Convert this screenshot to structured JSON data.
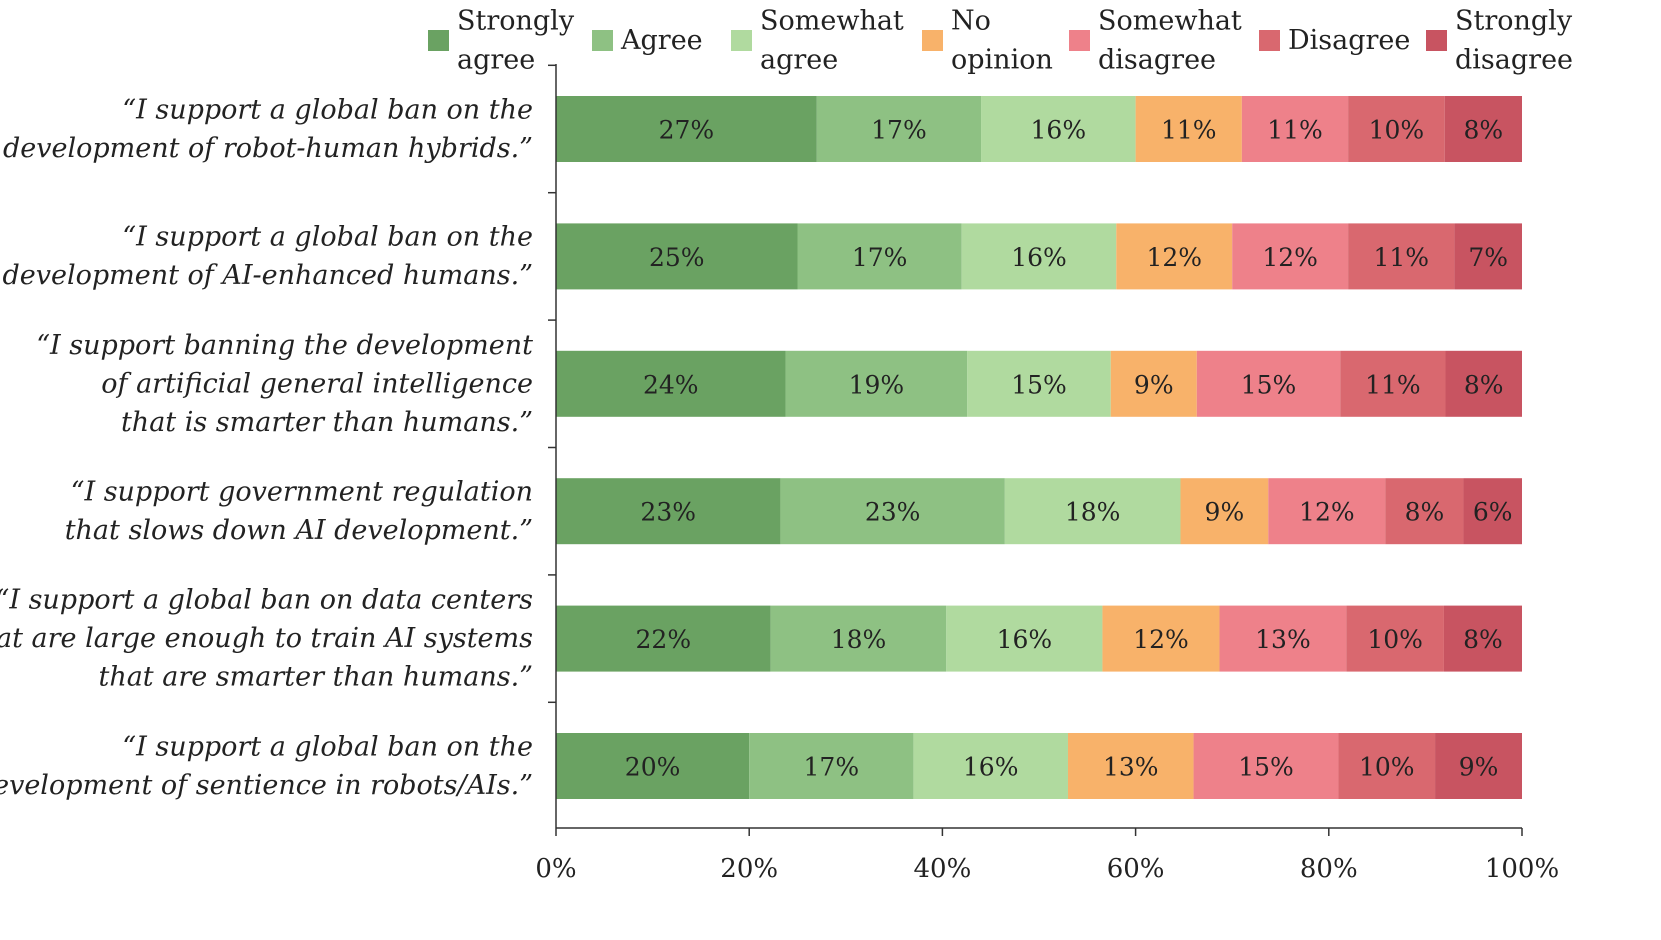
{
  "chart_data": {
    "type": "bar",
    "orientation": "horizontal",
    "stacked": true,
    "title": "",
    "xlabel": "",
    "ylabel": "",
    "xlim": [
      0,
      100
    ],
    "x_ticks": [
      "0%",
      "20%",
      "40%",
      "60%",
      "80%",
      "100%"
    ],
    "grid": false,
    "legend_position": "top",
    "categories": [
      {
        "lines": [
          "“I support a global ban on the",
          "development of robot-human hybrids.”"
        ]
      },
      {
        "lines": [
          "“I support a global ban on the",
          "development of AI-enhanced humans.”"
        ]
      },
      {
        "lines": [
          "“I support banning the development",
          "of artificial general intelligence",
          "that is smarter than humans.”"
        ]
      },
      {
        "lines": [
          "“I support government regulation",
          "that slows down AI development.”"
        ]
      },
      {
        "lines": [
          "“I support a global ban on data centers",
          "that are large enough to train AI systems",
          "that are smarter than humans.”"
        ]
      },
      {
        "lines": [
          "“I support a global ban on the",
          "development of sentience in robots/AIs.”"
        ]
      }
    ],
    "series": [
      {
        "name": "Strongly agree",
        "legend_lines": [
          "Strongly",
          "agree"
        ],
        "color": "#6aa262",
        "values": [
          27,
          25,
          24,
          23,
          22,
          20
        ],
        "labels": [
          "27%",
          "25%",
          "24%",
          "23%",
          "22%",
          "20%"
        ]
      },
      {
        "name": "Agree",
        "legend_lines": [
          "Agree"
        ],
        "color": "#8ec183",
        "values": [
          17,
          17,
          19,
          23,
          18,
          17
        ],
        "labels": [
          "17%",
          "17%",
          "19%",
          "23%",
          "18%",
          "17%"
        ]
      },
      {
        "name": "Somewhat agree",
        "legend_lines": [
          "Somewhat",
          "agree"
        ],
        "color": "#b0da9f",
        "values": [
          16,
          16,
          15,
          18,
          16,
          16
        ],
        "labels": [
          "16%",
          "16%",
          "15%",
          "18%",
          "16%",
          "16%"
        ]
      },
      {
        "name": "No opinion",
        "legend_lines": [
          "No",
          "opinion"
        ],
        "color": "#f8b26a",
        "values": [
          11,
          12,
          9,
          9,
          12,
          13
        ],
        "labels": [
          "11%",
          "12%",
          "9%",
          "9%",
          "12%",
          "13%"
        ]
      },
      {
        "name": "Somewhat disagree",
        "legend_lines": [
          "Somewhat",
          "disagree"
        ],
        "color": "#ee818a",
        "values": [
          11,
          12,
          15,
          12,
          13,
          15
        ],
        "labels": [
          "11%",
          "12%",
          "15%",
          "12%",
          "13%",
          "15%"
        ]
      },
      {
        "name": "Disagree",
        "legend_lines": [
          "Disagree"
        ],
        "color": "#d9686f",
        "values": [
          10,
          11,
          11,
          8,
          10,
          10
        ],
        "labels": [
          "10%",
          "11%",
          "11%",
          "8%",
          "10%",
          "10%"
        ]
      },
      {
        "name": "Strongly disagree",
        "legend_lines": [
          "Strongly",
          "disagree"
        ],
        "color": "#c85461",
        "values": [
          8,
          7,
          8,
          6,
          8,
          9
        ],
        "labels": [
          "8%",
          "7%",
          "8%",
          "6%",
          "8%",
          "9%"
        ]
      }
    ]
  }
}
